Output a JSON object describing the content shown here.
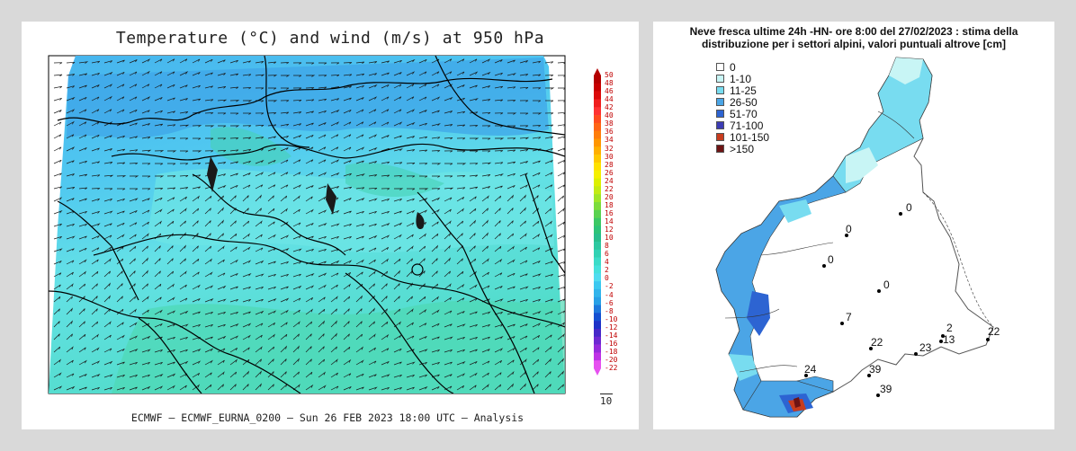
{
  "left_map": {
    "title": "Temperature (°C) and wind (m/s) at 950 hPa",
    "footer": "ECMWF – ECMWF_EURNA_0200 – Sun 26 FEB 2023 18:00 UTC – Analysis",
    "vector_reference": "10",
    "colorbar": {
      "labels": [
        "50",
        "48",
        "46",
        "44",
        "42",
        "40",
        "38",
        "36",
        "34",
        "32",
        "30",
        "28",
        "26",
        "24",
        "22",
        "20",
        "18",
        "16",
        "14",
        "12",
        "10",
        "8",
        "6",
        "4",
        "2",
        "0",
        "-2",
        "-4",
        "-6",
        "-8",
        "-10",
        "-12",
        "-14",
        "-16",
        "-18",
        "-20",
        "-22"
      ],
      "colors": [
        "#b40000",
        "#c80000",
        "#dc0a0a",
        "#f01e1e",
        "#ff3232",
        "#ff4a1e",
        "#ff6414",
        "#ff7d0a",
        "#ff9600",
        "#ffaf00",
        "#ffc800",
        "#ffe100",
        "#f5f000",
        "#dcf000",
        "#c3eb14",
        "#a0e628",
        "#7ddc3c",
        "#5ad250",
        "#3cc864",
        "#2dc378",
        "#28be8c",
        "#2dc8a0",
        "#32d2b4",
        "#3cdcc8",
        "#46e1dc",
        "#50dcf0",
        "#3cc8f0",
        "#32b4eb",
        "#28a0e6",
        "#1e78dc",
        "#1450d2",
        "#1e32c8",
        "#4628c8",
        "#6e28d2",
        "#962adc",
        "#be32e6",
        "#e650f0"
      ]
    }
  },
  "right_map": {
    "title_line1": "Neve fresca ultime 24h -HN- ore 8:00 del 27/02/2023 : stima della",
    "title_line2": "distribuzione per i settori alpini, valori puntuali altrove [cm]",
    "legend": [
      {
        "label": "0",
        "color": "#ffffff"
      },
      {
        "label": "1-10",
        "color": "#c8f5f5"
      },
      {
        "label": "11-25",
        "color": "#78dcf0"
      },
      {
        "label": "26-50",
        "color": "#4ba5e6"
      },
      {
        "label": "51-70",
        "color": "#2d64d2"
      },
      {
        "label": "71-100",
        "color": "#3c3cb4"
      },
      {
        "label": "101-150",
        "color": "#c83c1e"
      },
      {
        "label": ">150",
        "color": "#6e1414"
      }
    ],
    "stations": [
      {
        "value": "0"
      },
      {
        "value": "0"
      },
      {
        "value": "0"
      },
      {
        "value": "0"
      },
      {
        "value": "7"
      },
      {
        "value": "2"
      },
      {
        "value": "13"
      },
      {
        "value": "22"
      },
      {
        "value": "22"
      },
      {
        "value": "23"
      },
      {
        "value": "24"
      },
      {
        "value": "39"
      },
      {
        "value": "39"
      }
    ]
  }
}
